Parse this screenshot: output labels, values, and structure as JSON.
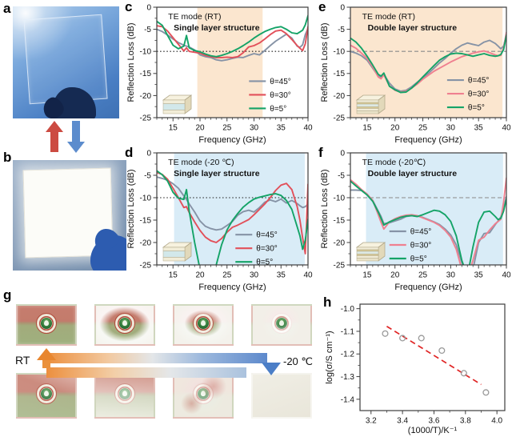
{
  "panel_labels": {
    "a": "a",
    "b": "b",
    "c": "c",
    "d": "d",
    "e": "e",
    "f": "f",
    "g": "g",
    "h": "h"
  },
  "colors": {
    "theta45": "#8693a6",
    "theta30_red": "#e2505a",
    "theta30_pink": "#ef8090",
    "theta5": "#14a367",
    "band_warm": "#fbe6cf",
    "band_cold": "#d9ecf7",
    "fit_red": "#e02525",
    "strip_warm": "#ec8f3e",
    "strip_cold": "#5d89cc",
    "arrow_up_red": "#cc4b42",
    "arrow_down_blue": "#5c8ccd"
  },
  "g_panel": {
    "label_left": "RT",
    "label_right": "-20 ℃",
    "photos": [
      {
        "name": "sample-rt-clear",
        "state": "clear"
      },
      {
        "name": "sample-freezing-edge-frost",
        "state": "frost-edge"
      },
      {
        "name": "sample-freezing-mid-frost",
        "state": "frost-mid"
      },
      {
        "name": "sample-freezing-heavy-frost",
        "state": "frost-heavy"
      },
      {
        "name": "sample-thawed-mostly-clear",
        "state": "thaw-mostly"
      },
      {
        "name": "sample-thawing-partial",
        "state": "thaw-partial"
      },
      {
        "name": "sample-thawing-early",
        "state": "thaw-light"
      },
      {
        "name": "sample-cold-opaque",
        "state": "opaque"
      }
    ]
  },
  "chart_data": [
    {
      "id": "c",
      "type": "line",
      "panel_label": "c",
      "title": "TE mode (RT)",
      "subtitle": "Single layer structure",
      "xlabel": "Frequency (GHz)",
      "ylabel": "Reflection Loss (dB)",
      "xlim": [
        12,
        40
      ],
      "ylim": [
        -25,
        0
      ],
      "xticks": [
        15,
        20,
        25,
        30,
        35,
        40
      ],
      "yticks": [
        0,
        -5,
        -10,
        -15,
        -20,
        -25
      ],
      "xminor": 1,
      "yminor": 2.5,
      "band": [
        19.5,
        31.6
      ],
      "band_color": "#fbe6cf",
      "refline": {
        "y": -10,
        "color": "#1a1a1a",
        "dash": "1.5 2.6"
      },
      "inset": "single",
      "legend": {
        "x": 0.61,
        "y": 0.67
      },
      "x": [
        12,
        13,
        14,
        15,
        16,
        17,
        17.5,
        18,
        19,
        20,
        21,
        22,
        23,
        24,
        25,
        26,
        27,
        28,
        29,
        30,
        31,
        32,
        33,
        34,
        35,
        36,
        37,
        38,
        38.5,
        39,
        39.5,
        40
      ],
      "series": [
        {
          "name": "θ=45°",
          "color": "#8693a6",
          "y": [
            -5.0,
            -5.5,
            -6.3,
            -7.2,
            -8.0,
            -8.6,
            -8.8,
            -9.0,
            -9.7,
            -10.8,
            -11.2,
            -11.4,
            -11.9,
            -12.1,
            -11.9,
            -11.6,
            -11.3,
            -11.4,
            -10.9,
            -10.5,
            -10.8,
            -9.8,
            -8.7,
            -7.7,
            -6.9,
            -6.1,
            -7.0,
            -8.8,
            -9.1,
            -8.5,
            -6.2,
            -4.8
          ]
        },
        {
          "name": "θ=30°",
          "color": "#e2505a",
          "y": [
            -4.2,
            -4.4,
            -5.4,
            -6.9,
            -8.4,
            -9.9,
            -9.2,
            -10.0,
            -10.2,
            -10.4,
            -10.9,
            -11.2,
            -11.4,
            -11.4,
            -11.3,
            -11.4,
            -11.2,
            -10.3,
            -9.0,
            -8.7,
            -8.1,
            -7.2,
            -6.2,
            -5.4,
            -5.2,
            -6.0,
            -7.3,
            -8.7,
            -9.3,
            -9.8,
            -8.3,
            -4.4
          ]
        },
        {
          "name": "θ=5°",
          "color": "#14a367",
          "y": [
            -3.2,
            -4.1,
            -6.4,
            -8.6,
            -9.4,
            -8.8,
            -6.4,
            -9.2,
            -9.8,
            -10.1,
            -10.6,
            -11.0,
            -11.2,
            -10.9,
            -10.5,
            -10.0,
            -9.4,
            -8.7,
            -7.9,
            -7.0,
            -6.2,
            -5.5,
            -5.0,
            -4.6,
            -4.4,
            -5.0,
            -5.8,
            -6.0,
            -5.6,
            -5.2,
            -4.0,
            -1.9
          ]
        }
      ]
    },
    {
      "id": "d",
      "type": "line",
      "panel_label": "d",
      "title": "TE mode (-20 ℃)",
      "subtitle": "Single layer structure",
      "xlabel": "Frequency (GHz)",
      "ylabel": "Reflection Loss (dB)",
      "xlim": [
        12,
        40
      ],
      "ylim": [
        -25,
        0
      ],
      "xticks": [
        15,
        20,
        25,
        30,
        35,
        40
      ],
      "yticks": [
        0,
        -5,
        -10,
        -15,
        -20,
        -25
      ],
      "xminor": 1,
      "yminor": 2.5,
      "band": [
        15.2,
        39.4
      ],
      "band_color": "#d9ecf7",
      "refline": {
        "y": -10,
        "color": "#1a1a1a",
        "dash": "1.5 2.6"
      },
      "inset": "single",
      "legend": {
        "x": 0.52,
        "y": 0.73
      },
      "x": [
        12,
        13,
        14,
        15,
        16,
        17,
        17.5,
        18,
        19,
        20,
        21,
        22,
        23,
        24,
        25,
        26,
        27,
        28,
        29,
        30,
        31,
        32,
        33,
        34,
        35,
        36,
        37,
        38,
        38.5,
        39,
        39.5,
        40
      ],
      "series": [
        {
          "name": "θ=45°",
          "color": "#8693a6",
          "y": [
            -5.4,
            -5.7,
            -6.1,
            -6.9,
            -7.9,
            -9.6,
            -10.4,
            -11.4,
            -13.2,
            -15.2,
            -16.4,
            -16.9,
            -17.2,
            -17.0,
            -16.2,
            -15.3,
            -13.9,
            -13.1,
            -12.8,
            -13.2,
            -12.2,
            -11.0,
            -10.5,
            -10.9,
            -10.3,
            -11.2,
            -10.6,
            -11.3,
            -11.8,
            -12.2,
            -12.0,
            -11.4
          ]
        },
        {
          "name": "θ=30°",
          "color": "#e2505a",
          "y": [
            -4.4,
            -4.8,
            -5.9,
            -7.9,
            -10.0,
            -12.2,
            -12.0,
            -13.3,
            -15.4,
            -17.3,
            -18.8,
            -19.6,
            -20.0,
            -19.1,
            -17.7,
            -16.6,
            -16.1,
            -15.5,
            -14.9,
            -13.8,
            -12.6,
            -11.4,
            -10.0,
            -8.4,
            -7.2,
            -6.8,
            -8.2,
            -12.0,
            -15.0,
            -19.0,
            -22.5,
            -7.0
          ]
        },
        {
          "name": "θ=5°",
          "color": "#14a367",
          "y": [
            -4.0,
            -4.9,
            -6.3,
            -8.8,
            -10.1,
            -10.4,
            -8.2,
            -13.0,
            -20.0,
            -26.0,
            -27.5,
            -27.0,
            -25.0,
            -20.5,
            -17.2,
            -15.1,
            -13.5,
            -12.1,
            -11.1,
            -10.3,
            -9.9,
            -9.6,
            -9.3,
            -9.1,
            -9.5,
            -10.6,
            -12.6,
            -16.5,
            -18.5,
            -21.5,
            -19.5,
            -14.8
          ]
        }
      ]
    },
    {
      "id": "e",
      "type": "line",
      "panel_label": "e",
      "title": "TE mode (RT)",
      "subtitle": "Double layer structure",
      "xlabel": "Frequency (GHz)",
      "ylabel": "Reflection Loss (dB)",
      "xlim": [
        12,
        40
      ],
      "ylim": [
        -25,
        0
      ],
      "xticks": [
        15,
        20,
        25,
        30,
        35,
        40
      ],
      "yticks": [
        0,
        -5,
        -10,
        -15,
        -20,
        -25
      ],
      "xminor": 1,
      "yminor": 2.5,
      "band": [
        12,
        39.3
      ],
      "band_color": "#fbe6cf",
      "refline": {
        "y": -10,
        "color": "#8a8a8a",
        "dash": "5 3"
      },
      "inset": "double",
      "legend": {
        "x": 0.62,
        "y": 0.66
      },
      "x": [
        12,
        13,
        14,
        15,
        16,
        17,
        17.5,
        18,
        19,
        20,
        21,
        22,
        23,
        24,
        25,
        26,
        27,
        28,
        29,
        30,
        31,
        32,
        33,
        34,
        35,
        36,
        37,
        38,
        38.5,
        39,
        39.5,
        40
      ],
      "series": [
        {
          "name": "θ=45°",
          "color": "#8693a6",
          "y": [
            -10.0,
            -10.4,
            -11.0,
            -12.0,
            -13.8,
            -15.6,
            -16.0,
            -15.2,
            -17.2,
            -18.5,
            -19.0,
            -18.8,
            -18.0,
            -17.0,
            -16.0,
            -15.0,
            -13.8,
            -12.6,
            -11.6,
            -10.4,
            -9.4,
            -8.6,
            -8.1,
            -8.4,
            -8.7,
            -7.9,
            -7.5,
            -8.2,
            -8.8,
            -9.4,
            -8.8,
            -6.2
          ]
        },
        {
          "name": "θ=30°",
          "color": "#ef8090",
          "y": [
            -8.6,
            -9.3,
            -10.4,
            -11.6,
            -13.5,
            -15.8,
            -16.2,
            -15.3,
            -17.8,
            -18.8,
            -19.2,
            -19.0,
            -18.3,
            -17.4,
            -16.3,
            -15.4,
            -14.5,
            -13.8,
            -13.1,
            -12.4,
            -11.8,
            -11.2,
            -10.8,
            -10.4,
            -10.1,
            -9.9,
            -10.3,
            -10.8,
            -11.0,
            -10.9,
            -9.2,
            -5.7
          ]
        },
        {
          "name": "θ=5°",
          "color": "#14a367",
          "y": [
            -7.0,
            -7.9,
            -9.3,
            -11.1,
            -13.1,
            -15.2,
            -15.6,
            -14.9,
            -17.9,
            -18.7,
            -19.3,
            -19.2,
            -18.3,
            -17.1,
            -15.8,
            -14.5,
            -13.2,
            -12.0,
            -11.2,
            -10.6,
            -10.4,
            -10.5,
            -10.8,
            -11.1,
            -10.8,
            -10.5,
            -10.9,
            -11.1,
            -11.0,
            -10.7,
            -9.6,
            -6.3
          ]
        }
      ]
    },
    {
      "id": "f",
      "type": "line",
      "panel_label": "f",
      "title": "TE mode (-20℃)",
      "subtitle": "Double layer structure",
      "xlabel": "Frequency (GHz)",
      "ylabel": "Reflection Loss (dB)",
      "xlim": [
        12,
        40
      ],
      "ylim": [
        -25,
        0
      ],
      "xticks": [
        15,
        20,
        25,
        30,
        35,
        40
      ],
      "yticks": [
        0,
        -5,
        -10,
        -15,
        -20,
        -25
      ],
      "xminor": 1,
      "yminor": 2.5,
      "band": [
        14.8,
        39.4
      ],
      "band_color": "#d9ecf7",
      "refline": {
        "y": -10,
        "color": "#8a8a8a",
        "dash": "5 3"
      },
      "inset": "double",
      "legend": {
        "x": 0.25,
        "y": 0.7
      },
      "x": [
        12,
        13,
        14,
        15,
        16,
        17,
        17.5,
        18,
        19,
        20,
        21,
        22,
        23,
        24,
        25,
        26,
        27,
        28,
        29,
        30,
        31,
        32,
        33,
        34,
        35,
        36,
        37,
        38,
        38.5,
        39,
        39.5,
        40
      ],
      "series": [
        {
          "name": "θ=45°",
          "color": "#8693a6",
          "y": [
            -8.3,
            -8.3,
            -8.4,
            -9.3,
            -10.6,
            -13.0,
            -14.2,
            -15.8,
            -15.6,
            -15.2,
            -14.8,
            -14.2,
            -14.0,
            -14.1,
            -14.4,
            -14.9,
            -15.4,
            -16.0,
            -17.0,
            -18.3,
            -20.5,
            -24.5,
            -27.5,
            -26.0,
            -20.0,
            -18.0,
            -17.8,
            -16.0,
            -15.2,
            -14.3,
            -12.5,
            -9.8
          ]
        },
        {
          "name": "θ=30°",
          "color": "#ef8090",
          "y": [
            -6.0,
            -7.0,
            -8.2,
            -9.2,
            -10.6,
            -13.8,
            -15.5,
            -17.0,
            -15.4,
            -14.7,
            -14.2,
            -13.9,
            -13.8,
            -14.0,
            -14.5,
            -15.0,
            -15.5,
            -16.2,
            -17.3,
            -18.8,
            -21.5,
            -26.0,
            -28.0,
            -24.0,
            -19.5,
            -18.8,
            -17.2,
            -15.8,
            -15.3,
            -14.8,
            -11.0,
            -5.6
          ]
        },
        {
          "name": "θ=5°",
          "color": "#14a367",
          "y": [
            -6.3,
            -7.4,
            -8.4,
            -9.4,
            -10.8,
            -13.2,
            -14.6,
            -16.1,
            -15.4,
            -14.9,
            -14.4,
            -14.1,
            -14.0,
            -14.2,
            -13.8,
            -13.3,
            -12.8,
            -13.0,
            -13.8,
            -15.3,
            -18.5,
            -24.0,
            -27.5,
            -21.0,
            -15.5,
            -13.2,
            -13.0,
            -14.2,
            -14.9,
            -14.6,
            -13.0,
            -10.3
          ]
        }
      ]
    },
    {
      "id": "h",
      "type": "scatter",
      "panel_label": "h",
      "xlabel": "(1000/T)/K⁻¹",
      "ylabel": "log(σ/S cm⁻¹)",
      "xlim": [
        3.13,
        4.05
      ],
      "ylim": [
        -1.45,
        -0.98
      ],
      "xticks": [
        3.2,
        3.4,
        3.6,
        3.8,
        4.0
      ],
      "yticks": [
        -1.0,
        -1.1,
        -1.2,
        -1.3,
        -1.4
      ],
      "xminor": 0.1,
      "yminor": 0.05,
      "xdec": 1,
      "ydec": 1,
      "points": {
        "x": [
          3.29,
          3.4,
          3.52,
          3.65,
          3.79,
          3.93
        ],
        "y": [
          -1.11,
          -1.13,
          -1.13,
          -1.185,
          -1.285,
          -1.37
        ]
      },
      "fit": {
        "x": [
          3.3,
          3.9
        ],
        "y": [
          -1.078,
          -1.335
        ],
        "color": "#e02525"
      }
    }
  ]
}
